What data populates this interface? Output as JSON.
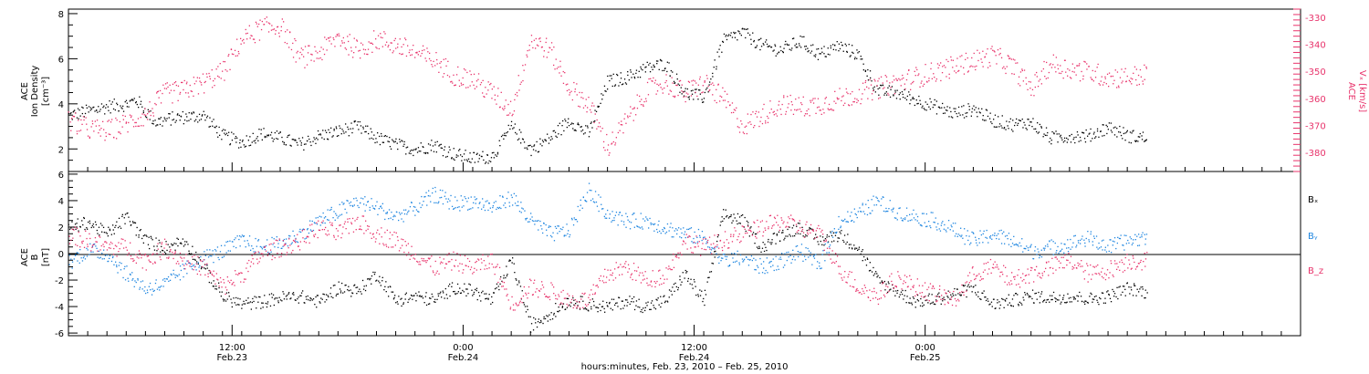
{
  "colors": {
    "black": "#000000",
    "red": "#e8336b",
    "blue": "#1f86e0",
    "axis": "#000000"
  },
  "chart_data": [
    {
      "type": "scatter",
      "panel": "top",
      "ylabel_left_lines": [
        "ACE",
        "Ion Density",
        "[cm⁻³]"
      ],
      "ylabel_right_lines": [
        "ACE",
        "Vₓ [km/s]"
      ],
      "y_left_lim": [
        1,
        8.2
      ],
      "y_left_ticks": [
        2,
        4,
        6,
        8
      ],
      "y_right_lim": [
        -387,
        -327
      ],
      "y_right_ticks": [
        -330,
        -340,
        -350,
        -360,
        -370,
        -380
      ],
      "series": [
        {
          "id": "density",
          "axis": "left",
          "color": "#000000",
          "hours": [
            0,
            1,
            2,
            3,
            3.5,
            4.5,
            5.5,
            7,
            8,
            9,
            10,
            11,
            12,
            13,
            14,
            15,
            16,
            17,
            18,
            19,
            20,
            21,
            22,
            23,
            24,
            25,
            26,
            27,
            28,
            29,
            30,
            31,
            32,
            33,
            34,
            35,
            36,
            37,
            38,
            39,
            40,
            41,
            42,
            43,
            44,
            45,
            46,
            47,
            48,
            49,
            50,
            51,
            52,
            53,
            54,
            55,
            56
          ],
          "values": [
            3.5,
            3.7,
            3.9,
            4,
            4.2,
            3.2,
            3.4,
            3.5,
            2.6,
            2.3,
            2.7,
            2.5,
            2.2,
            2.6,
            2.8,
            3,
            2.5,
            2.2,
            2,
            2.2,
            1.8,
            1.6,
            1.7,
            3,
            2,
            2.5,
            3.3,
            2.7,
            5,
            5.2,
            5.6,
            5.8,
            4.5,
            4.3,
            6.8,
            7.2,
            6.6,
            6.4,
            6.8,
            6.2,
            6.6,
            6.2,
            4.6,
            4.5,
            4.2,
            3.9,
            3.6,
            3.8,
            3.3,
            3.1,
            3.2,
            2.5,
            2.6,
            2.6,
            3,
            2.6,
            2.5
          ],
          "spread": 0.3
        },
        {
          "id": "vx",
          "axis": "right",
          "color": "#e8336b",
          "hours": [
            0,
            1,
            2,
            3,
            4,
            5,
            6,
            7,
            8,
            9,
            10,
            11,
            12,
            13,
            14,
            15,
            16,
            17,
            18,
            19,
            20,
            21,
            22,
            23,
            24,
            25,
            26,
            27,
            28,
            29,
            30,
            31,
            32,
            33,
            34,
            35,
            36,
            37,
            38,
            39,
            40,
            41,
            42,
            43,
            44,
            45,
            46,
            47,
            48,
            49,
            50,
            51,
            52,
            53,
            54,
            55,
            56
          ],
          "values": [
            -368,
            -371,
            -372,
            -369,
            -366,
            -358,
            -357,
            -354,
            -350,
            -338,
            -334,
            -333,
            -345,
            -343,
            -337,
            -342,
            -338,
            -340,
            -343,
            -346,
            -351,
            -353,
            -358,
            -364,
            -338,
            -342,
            -356,
            -362,
            -378,
            -368,
            -357,
            -354,
            -358,
            -354,
            -360,
            -370,
            -366,
            -362,
            -363,
            -362,
            -360,
            -358,
            -356,
            -354,
            -352,
            -350,
            -348,
            -346,
            -344,
            -348,
            -356,
            -347,
            -349,
            -350,
            -352,
            -352,
            -351
          ],
          "spread": 4
        }
      ]
    },
    {
      "type": "scatter",
      "panel": "bottom",
      "ylabel_left_lines": [
        "ACE",
        "B",
        "[nT]"
      ],
      "y_lim": [
        -6.2,
        6.2
      ],
      "y_ticks": [
        -6,
        -4,
        -2,
        0,
        2,
        4,
        6
      ],
      "legend": [
        {
          "label": "Bₓ",
          "color": "#000000"
        },
        {
          "label": "Bᵧ",
          "color": "#1f86e0"
        },
        {
          "label": "B_z",
          "color": "#e8336b"
        }
      ],
      "series": [
        {
          "id": "bx",
          "color": "#000000",
          "hours": [
            0,
            1,
            2,
            3,
            4,
            5,
            6,
            7,
            8,
            9,
            10,
            11,
            12,
            13,
            14,
            15,
            16,
            17,
            18,
            19,
            20,
            21,
            22,
            23,
            24,
            25,
            26,
            27,
            28,
            29,
            30,
            31,
            32,
            33,
            34,
            35,
            36,
            37,
            38,
            39,
            40,
            41,
            42,
            43,
            44,
            45,
            46,
            47,
            48,
            49,
            50,
            51,
            52,
            53,
            54,
            55,
            56
          ],
          "values": [
            2,
            2.4,
            1.5,
            2.8,
            1,
            0.5,
            1,
            -1,
            -3.2,
            -3.8,
            -3.6,
            -3.3,
            -3.2,
            -3.6,
            -2.5,
            -2.8,
            -1.5,
            -3.5,
            -3.2,
            -3.5,
            -2.5,
            -2.8,
            -3.5,
            -0.5,
            -5.4,
            -4.5,
            -3.5,
            -3.8,
            -4,
            -3.5,
            -4,
            -3.5,
            -1.5,
            -3.5,
            3,
            2.5,
            0.5,
            1.5,
            2,
            1,
            1.5,
            0.5,
            -2,
            -2.8,
            -3.6,
            -3.4,
            -3,
            -2.6,
            -3.8,
            -3.5,
            -3.2,
            -3.3,
            -3.2,
            -3.4,
            -3.2,
            -2.6,
            -2.9
          ],
          "spread": 0.5
        },
        {
          "id": "by",
          "color": "#1f86e0",
          "hours": [
            0,
            1,
            2,
            3,
            4,
            5,
            6,
            7,
            8,
            9,
            10,
            11,
            12,
            13,
            14,
            15,
            16,
            17,
            18,
            19,
            20,
            21,
            22,
            23,
            24,
            25,
            26,
            27,
            28,
            29,
            30,
            31,
            32,
            33,
            34,
            35,
            36,
            37,
            38,
            39,
            40,
            41,
            42,
            43,
            44,
            45,
            46,
            47,
            48,
            49,
            50,
            51,
            52,
            53,
            54,
            55,
            56
          ],
          "values": [
            -0.6,
            0.3,
            0,
            -1.5,
            -2.6,
            -2.3,
            -1.2,
            -0.3,
            0.2,
            1,
            0.5,
            0.8,
            1.5,
            2.5,
            3.2,
            4,
            3.5,
            2.8,
            3.5,
            4.5,
            3.8,
            4,
            3.5,
            4.3,
            2.5,
            1.5,
            1.8,
            4.8,
            3,
            2.5,
            2.5,
            2,
            1.5,
            1.2,
            -0.5,
            -0.3,
            -1,
            -0.5,
            0.2,
            -0.8,
            2.5,
            3,
            4,
            3.2,
            2.8,
            2.5,
            1.8,
            1,
            1.5,
            1,
            0.2,
            0.5,
            0.8,
            1.2,
            0.5,
            1,
            1.3
          ],
          "spread": 0.6
        },
        {
          "id": "bz",
          "color": "#e8336b",
          "hours": [
            0,
            1,
            2,
            3,
            4,
            5,
            6,
            7,
            8,
            9,
            10,
            11,
            12,
            13,
            14,
            15,
            16,
            17,
            18,
            19,
            20,
            21,
            22,
            23,
            24,
            25,
            26,
            27,
            28,
            29,
            30,
            31,
            32,
            33,
            34,
            35,
            36,
            37,
            38,
            39,
            40,
            41,
            42,
            43,
            44,
            45,
            46,
            47,
            48,
            49,
            50,
            51,
            52,
            53,
            54,
            55,
            56
          ],
          "values": [
            1.5,
            1,
            0.5,
            0.5,
            -0.5,
            0.5,
            -0.5,
            -1,
            -2.5,
            -1.5,
            0,
            0.5,
            1,
            2,
            1.5,
            2.5,
            1.5,
            1,
            0,
            -1,
            -0.5,
            -1,
            -0.5,
            -3.8,
            -2.5,
            -2.8,
            -3.5,
            -3.5,
            -1.5,
            -1,
            -2,
            -1.5,
            1,
            0.5,
            1,
            1.5,
            2,
            2.5,
            2,
            1.5,
            -1,
            -2.5,
            -3.2,
            -1.8,
            -2.5,
            -3,
            -3.5,
            -1.5,
            -1,
            -2,
            -1.5,
            -1,
            -0.5,
            -1.5,
            -1.2,
            -0.5,
            -0.5
          ],
          "spread": 0.7
        }
      ]
    }
  ],
  "x_axis": {
    "title": "hours:minutes, Feb. 23, 2010 – Feb. 25, 2010",
    "range_hours": [
      0,
      64
    ],
    "hours_offset": 3.5,
    "ticks": [
      {
        "h": 8.5,
        "top": "12:00",
        "bottom": "Feb.23"
      },
      {
        "h": 20.5,
        "top": "0:00",
        "bottom": "Feb.24"
      },
      {
        "h": 32.5,
        "top": "12:00",
        "bottom": "Feb.24"
      },
      {
        "h": 44.5,
        "top": "0:00",
        "bottom": "Feb.25"
      }
    ]
  }
}
